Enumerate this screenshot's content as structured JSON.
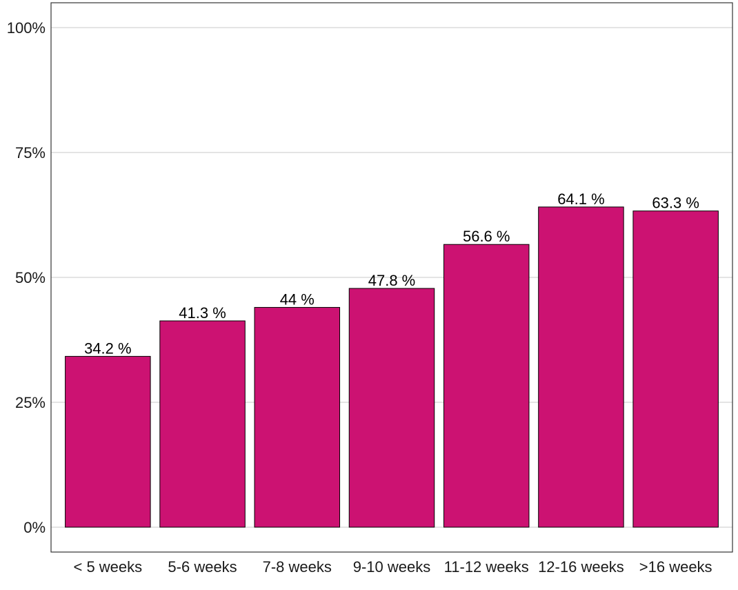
{
  "chart_data": {
    "type": "bar",
    "categories": [
      "< 5 weeks",
      "5-6 weeks",
      "7-8 weeks",
      "9-10 weeks",
      "11-12 weeks",
      "12-16 weeks",
      ">16 weeks"
    ],
    "values": [
      34.2,
      41.3,
      44,
      47.8,
      56.6,
      64.1,
      63.3
    ],
    "data_labels": [
      "34.2 %",
      "41.3 %",
      "44 %",
      "47.8 %",
      "56.6 %",
      "64.1 %",
      "63.3 %"
    ],
    "yticks": [
      0,
      25,
      50,
      75,
      100
    ],
    "ytick_labels": [
      "0%",
      "25%",
      "50%",
      "75%",
      "100%"
    ],
    "ylim": [
      0,
      100
    ],
    "title": "",
    "xlabel": "",
    "ylabel": "",
    "grid": true,
    "legend": "none",
    "bar_color": "#CC1272",
    "bar_border_color": "#000000"
  }
}
